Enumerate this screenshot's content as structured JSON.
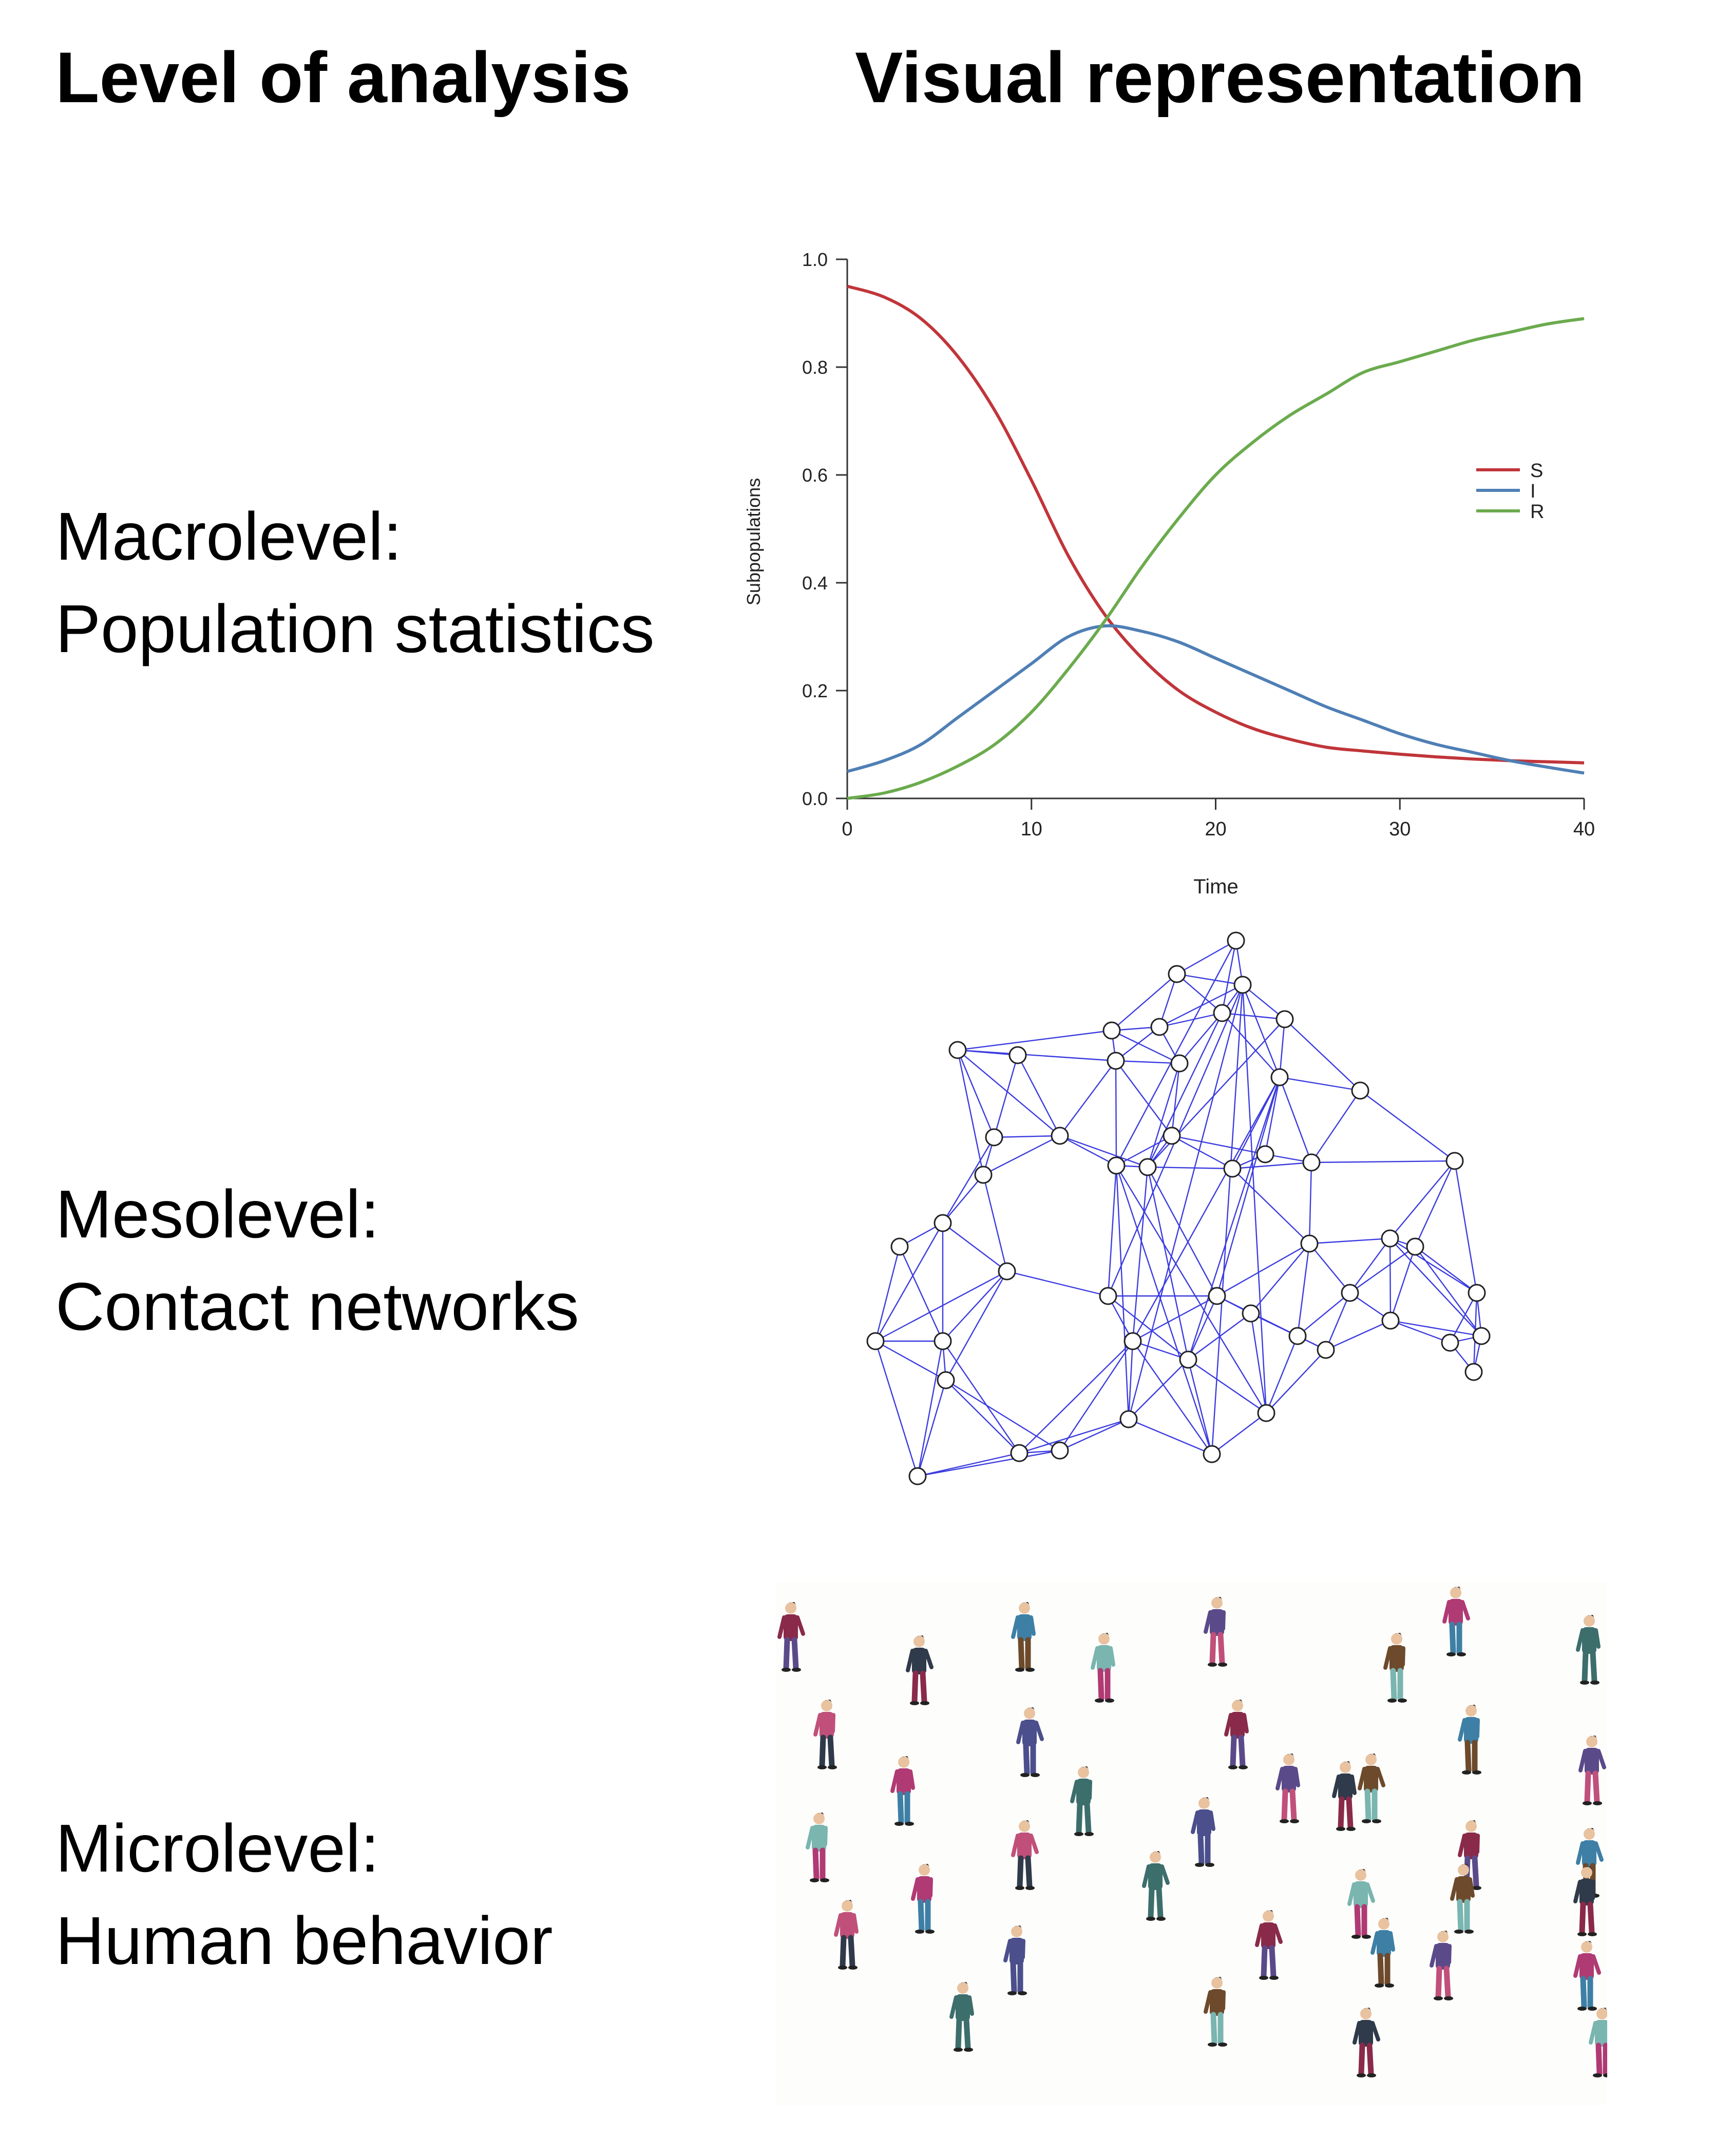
{
  "headers": {
    "left": "Level of analysis",
    "right": "Visual representation"
  },
  "levels": [
    {
      "name": "Macrolevel:",
      "desc": "Population statistics"
    },
    {
      "name": "Mesolevel:",
      "desc": "Contact networks"
    },
    {
      "name": "Microlevel:",
      "desc": "Human behavior"
    }
  ],
  "chart_data": {
    "type": "line",
    "xlabel": "Time",
    "ylabel": "Subpopulations",
    "xlim": [
      0,
      40
    ],
    "ylim": [
      0,
      1.0
    ],
    "xticks": [
      0,
      10,
      20,
      30,
      40
    ],
    "yticks": [
      "0.0",
      "0.2",
      "0.4",
      "0.6",
      "0.8",
      "1.0"
    ],
    "grid": false,
    "legend_position": "right",
    "x": [
      0,
      2,
      4,
      6,
      8,
      10,
      12,
      14,
      16,
      18,
      20,
      22,
      24,
      26,
      28,
      30,
      32,
      34,
      36,
      38,
      40
    ],
    "series": [
      {
        "name": "S",
        "color": "#c0353a",
        "values": [
          0.95,
          0.93,
          0.89,
          0.82,
          0.72,
          0.59,
          0.45,
          0.34,
          0.26,
          0.2,
          0.16,
          0.13,
          0.11,
          0.095,
          0.088,
          0.082,
          0.077,
          0.073,
          0.07,
          0.068,
          0.066
        ]
      },
      {
        "name": "I",
        "color": "#4f7fb5",
        "values": [
          0.05,
          0.07,
          0.1,
          0.15,
          0.2,
          0.25,
          0.3,
          0.32,
          0.31,
          0.29,
          0.26,
          0.23,
          0.2,
          0.17,
          0.145,
          0.12,
          0.1,
          0.085,
          0.07,
          0.058,
          0.047
        ]
      },
      {
        "name": "R",
        "color": "#6bab4e",
        "values": [
          0.0,
          0.01,
          0.03,
          0.06,
          0.1,
          0.16,
          0.24,
          0.33,
          0.43,
          0.52,
          0.6,
          0.66,
          0.71,
          0.75,
          0.79,
          0.81,
          0.83,
          0.85,
          0.865,
          0.88,
          0.89
        ]
      }
    ]
  },
  "network": {
    "node_color": "#ffffff",
    "edge_color": "#3b3be0"
  },
  "crowd": {
    "palette": [
      "#8a2a4a",
      "#3e7fa6",
      "#5b4a8a",
      "#b03a73",
      "#3c6e6c",
      "#6d4a2b",
      "#2f3a4a",
      "#7ab5b0",
      "#c0507a",
      "#4b4f8c"
    ]
  }
}
